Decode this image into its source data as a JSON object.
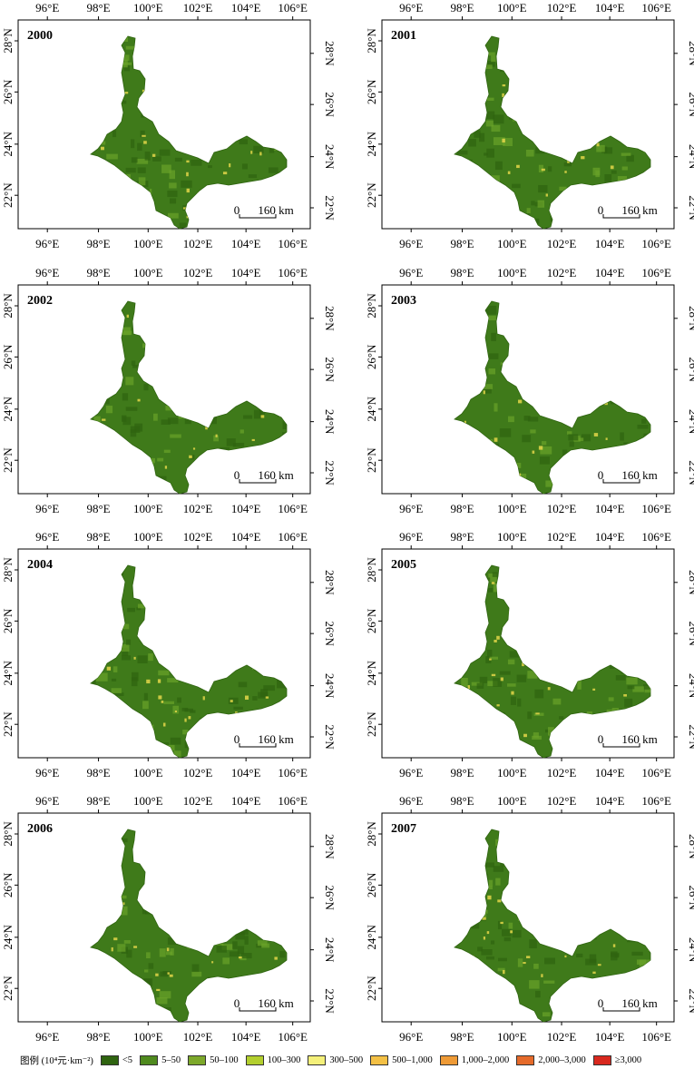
{
  "colors": {
    "region_base": "#3f7a1a",
    "region_dark": "#2f6410",
    "region_light": "#6aa22a",
    "speck_yellow": "#e3d64a",
    "frame": "#000000"
  },
  "lon_ticks": [
    "96°E",
    "98°E",
    "100°E",
    "102°E",
    "104°E",
    "106°E"
  ],
  "lat_ticks": [
    "28°N",
    "26°N",
    "24°N",
    "22°N"
  ],
  "scale": {
    "zero": "0",
    "value": "160 km"
  },
  "panels": [
    {
      "year": "2000"
    },
    {
      "year": "2001"
    },
    {
      "year": "2002"
    },
    {
      "year": "2003"
    },
    {
      "year": "2004"
    },
    {
      "year": "2005"
    },
    {
      "year": "2006"
    },
    {
      "year": "2007"
    }
  ],
  "legend": {
    "title": "图例 (10⁴元·km⁻²)",
    "items": [
      {
        "label": "<5",
        "color": "#2f6410"
      },
      {
        "label": "5–50",
        "color": "#4f8a1e"
      },
      {
        "label": "50–100",
        "color": "#7ca82a"
      },
      {
        "label": "100–300",
        "color": "#b3cf2e"
      },
      {
        "label": "300–500",
        "color": "#f4f07a"
      },
      {
        "label": "500–1,000",
        "color": "#f3c045"
      },
      {
        "label": "1,000–2,000",
        "color": "#ee9a36"
      },
      {
        "label": "2,000–3,000",
        "color": "#e56a2a"
      },
      {
        "label": "≥3,000",
        "color": "#d8281e"
      }
    ]
  }
}
